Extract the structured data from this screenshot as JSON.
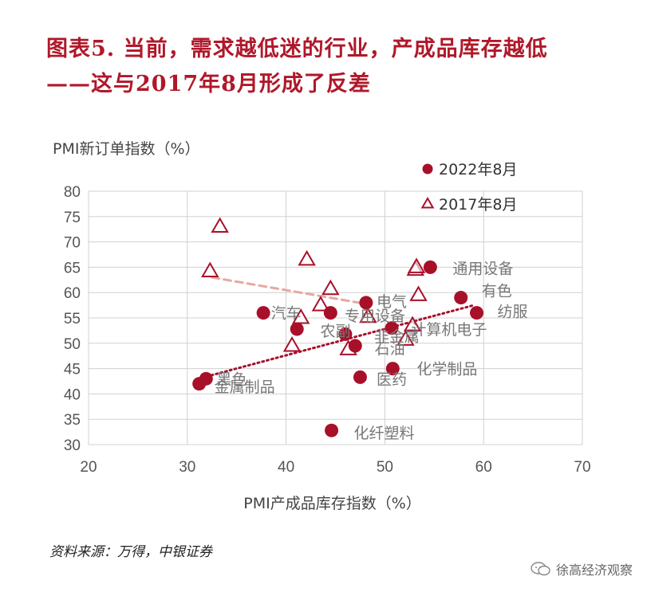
{
  "title": {
    "line1": "图表5. 当前，需求越低迷的行业，产成品库存越低",
    "line2": "——这与2017年8月形成了反差"
  },
  "source": "资料来源：万得，中银证券",
  "watermark": {
    "text": "徐高经济观察",
    "icon": "wechat-icon"
  },
  "colors": {
    "title": "#b0182a",
    "series_2022": "#a8102a",
    "series_2017": "#a8102a",
    "trend_2022": "#a8102a",
    "trend_2017": "#e6a8a0",
    "grid": "#d0d0d0",
    "axis_text": "#555555",
    "label_text": "#777777"
  },
  "chart_data": {
    "type": "scatter",
    "title": "",
    "xlabel": "PMI产成品库存指数（%）",
    "ylabel": "PMI新订单指数（%）",
    "xlim": [
      20,
      70
    ],
    "ylim": [
      30,
      80
    ],
    "xticks": [
      20,
      30,
      40,
      50,
      60,
      70
    ],
    "yticks": [
      30,
      35,
      40,
      45,
      50,
      55,
      60,
      65,
      70,
      75,
      80
    ],
    "grid": true,
    "legend_position": "top-right",
    "series": [
      {
        "name": "2022年8月",
        "marker": "circle-filled",
        "trendline": "dotted",
        "points": [
          {
            "x": 31.2,
            "y": 42.0,
            "label": ""
          },
          {
            "x": 31.9,
            "y": 43.0,
            "label": ""
          },
          {
            "x": 37.7,
            "y": 56.0,
            "label": ""
          },
          {
            "x": 41.1,
            "y": 52.8,
            "label": ""
          },
          {
            "x": 44.5,
            "y": 56.0,
            "label": ""
          },
          {
            "x": 46.0,
            "y": 51.8,
            "label": ""
          },
          {
            "x": 47.0,
            "y": 49.5,
            "label": ""
          },
          {
            "x": 47.5,
            "y": 43.3,
            "label": ""
          },
          {
            "x": 48.1,
            "y": 58.0,
            "label": ""
          },
          {
            "x": 50.7,
            "y": 53.0,
            "label": ""
          },
          {
            "x": 50.8,
            "y": 45.0,
            "label": ""
          },
          {
            "x": 54.6,
            "y": 65.0,
            "label": "通用设备"
          },
          {
            "x": 57.7,
            "y": 59.0,
            "label": "有色"
          },
          {
            "x": 59.3,
            "y": 56.0,
            "label": "纺服"
          },
          {
            "x": 44.6,
            "y": 32.8,
            "label": "化纤塑料"
          }
        ]
      },
      {
        "name": "2017年8月",
        "marker": "triangle-open",
        "trendline": "dashed",
        "points": [
          {
            "x": 33.3,
            "y": 73.0
          },
          {
            "x": 32.3,
            "y": 64.2
          },
          {
            "x": 42.1,
            "y": 66.5
          },
          {
            "x": 44.5,
            "y": 60.7
          },
          {
            "x": 43.5,
            "y": 57.5
          },
          {
            "x": 41.5,
            "y": 55.0
          },
          {
            "x": 40.6,
            "y": 49.5
          },
          {
            "x": 46.3,
            "y": 48.8
          },
          {
            "x": 48.3,
            "y": 55.2
          },
          {
            "x": 52.1,
            "y": 50.7
          },
          {
            "x": 52.8,
            "y": 53.5
          },
          {
            "x": 53.4,
            "y": 59.5
          },
          {
            "x": 53.1,
            "y": 64.5
          },
          {
            "x": 53.2,
            "y": 65.0
          }
        ]
      }
    ],
    "annotations": [
      {
        "text": "汽车",
        "x": 40.0,
        "y": 56.0
      },
      {
        "text": "专用设备",
        "x": 49.0,
        "y": 55.5
      },
      {
        "text": "电气",
        "x": 50.7,
        "y": 58.3
      },
      {
        "text": "农副",
        "x": 45.0,
        "y": 52.5
      },
      {
        "text": "非金属",
        "x": 51.2,
        "y": 51.5
      },
      {
        "text": "计算机电子",
        "x": 56.5,
        "y": 52.8
      },
      {
        "text": "石油",
        "x": 50.5,
        "y": 49.0
      },
      {
        "text": "化学制品",
        "x": 56.3,
        "y": 45.0
      },
      {
        "text": "医药",
        "x": 50.7,
        "y": 43.0
      },
      {
        "text": "黑色",
        "x": 34.5,
        "y": 43.0
      },
      {
        "text": "金属制品",
        "x": 35.8,
        "y": 41.5
      }
    ],
    "trendlines": [
      {
        "series": "2022年8月",
        "from": [
          31.5,
          43.2
        ],
        "to": [
          59.0,
          57.5
        ]
      },
      {
        "series": "2017年8月",
        "from": [
          32.5,
          63.0
        ],
        "to": [
          48.0,
          57.8
        ]
      }
    ]
  }
}
